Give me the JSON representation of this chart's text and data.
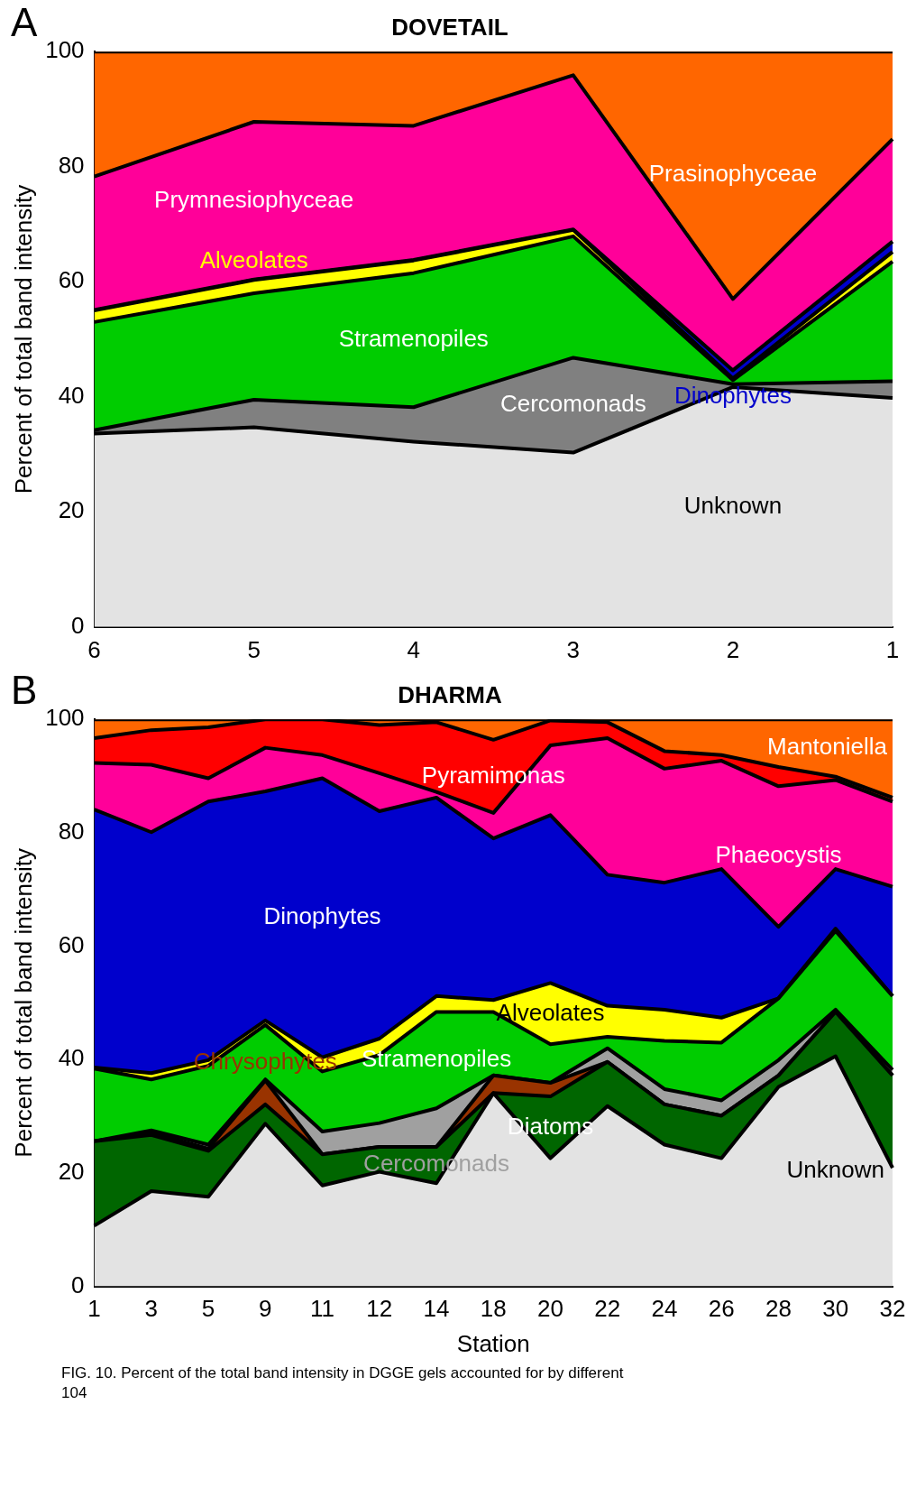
{
  "chart_data": [
    {
      "type": "area",
      "title": "DOVETAIL",
      "ylabel": "Percent of total band intensity",
      "annotations": [
        "A"
      ],
      "stacked": true,
      "legend": false,
      "categories": [
        "6",
        "5",
        "4",
        "3",
        "2",
        "1"
      ],
      "ylim": [
        0,
        100
      ],
      "yticks": [
        0,
        20,
        40,
        60,
        80,
        100
      ],
      "series": [
        {
          "name": "Unknown",
          "color": "#e3e3e3",
          "values": [
            33.6,
            34.7,
            32.2,
            30.3,
            41.7,
            39.8
          ]
        },
        {
          "name": "Cercomonads",
          "color": "#808080",
          "values": [
            0.6,
            4.8,
            6.0,
            16.5,
            0.5,
            2.9
          ]
        },
        {
          "name": "Stramenopiles",
          "color": "#00cc00",
          "values": [
            18.8,
            18.5,
            23.3,
            21.1,
            0.7,
            20.8
          ]
        },
        {
          "name": "Alveolates",
          "color": "#ffff00",
          "values": [
            2.0,
            2.3,
            2.2,
            1.1,
            0.3,
            1.7
          ]
        },
        {
          "name": "Dinophytes",
          "color": "#0000cc",
          "values": [
            0.1,
            0.1,
            0.1,
            0.1,
            1.4,
            1.8
          ]
        },
        {
          "name": "Prymnesiophyceae",
          "color": "#ff0099",
          "values": [
            23.2,
            27.4,
            23.3,
            26.8,
            12.4,
            17.8
          ]
        },
        {
          "name": "Prasinophyceae",
          "color": "#ff6600",
          "values": [
            21.7,
            12.2,
            12.9,
            4.1,
            43.0,
            15.2
          ]
        }
      ]
    },
    {
      "type": "area",
      "title": "DHARMA",
      "ylabel": "Percent of total band intensity",
      "xlabel": "Station",
      "annotations": [
        "B",
        "FIG. 10. Percent of the total band intensity in DGGE gels accounted for by different",
        "104"
      ],
      "stacked": true,
      "legend": false,
      "categories": [
        "1",
        "3",
        "5",
        "9",
        "11",
        "12",
        "14",
        "18",
        "20",
        "22",
        "24",
        "26",
        "28",
        "30",
        "32"
      ],
      "ylim": [
        0,
        100
      ],
      "yticks": [
        0,
        20,
        40,
        60,
        80,
        100
      ],
      "series": [
        {
          "name": "Unknown",
          "color": "#e3e3e3",
          "values": [
            10.7,
            16.8,
            15.8,
            28.7,
            17.8,
            20.2,
            18.2,
            34.1,
            22.6,
            31.8,
            25.0,
            22.6,
            35.2,
            40.6,
            20.9
          ]
        },
        {
          "name": "Diatoms",
          "color": "#006600",
          "values": [
            14.9,
            9.9,
            8.1,
            3.4,
            5.5,
            4.4,
            6.4,
            0,
            10.9,
            7.8,
            7.1,
            7.5,
            2.0,
            7.8,
            16.3
          ]
        },
        {
          "name": "Chrysophytes",
          "color": "#993300",
          "values": [
            0,
            0.4,
            0.4,
            4.2,
            0,
            0,
            0,
            3.1,
            2.4,
            0,
            0,
            0,
            0,
            0,
            0
          ]
        },
        {
          "name": "Cercomonads",
          "color": "#a0a0a0",
          "values": [
            0,
            0.4,
            0.7,
            0.2,
            4.0,
            4.2,
            6.8,
            0,
            0,
            2.4,
            2.7,
            2.7,
            2.7,
            0.4,
            1.0
          ]
        },
        {
          "name": "Stramenopiles",
          "color": "#00cc00",
          "values": [
            12.8,
            9.0,
            13.9,
            9.6,
            10.6,
            12.0,
            17.0,
            11.2,
            6.8,
            2.0,
            8.5,
            10.2,
            10.9,
            13.9,
            13.0
          ]
        },
        {
          "name": "Alveolates",
          "color": "#ffff00",
          "values": [
            0.2,
            1.1,
            1.0,
            0.8,
            2.5,
            2.9,
            2.8,
            2.1,
            10.8,
            5.5,
            5.5,
            4.4,
            0,
            0.4,
            0
          ]
        },
        {
          "name": "Dinophytes",
          "color": "#0000cc",
          "values": [
            45.5,
            42.5,
            45.6,
            40.4,
            49.2,
            40.1,
            35.0,
            28.5,
            29.6,
            23.1,
            22.4,
            26.2,
            12.6,
            10.5,
            19.3
          ]
        },
        {
          "name": "Phaeocystis",
          "color": "#ff0099",
          "values": [
            8.2,
            11.9,
            4.1,
            7.7,
            4.1,
            6.7,
            1.0,
            4.5,
            12.3,
            24.1,
            20.1,
            19.1,
            24.8,
            15.7,
            15.0
          ]
        },
        {
          "name": "Pyramimonas",
          "color": "#ff0000",
          "values": [
            4.4,
            6.1,
            9.0,
            5.0,
            6.3,
            8.5,
            12.3,
            12.9,
            4.4,
            2.8,
            3.1,
            1.0,
            3.4,
            0.6,
            0.7
          ]
        },
        {
          "name": "Mantoniella",
          "color": "#ff6600",
          "values": [
            3.3,
            1.9,
            1.4,
            0,
            0,
            1.0,
            0.5,
            3.6,
            0.2,
            0.5,
            5.6,
            6.3,
            8.4,
            10.1,
            13.8
          ]
        }
      ]
    }
  ]
}
